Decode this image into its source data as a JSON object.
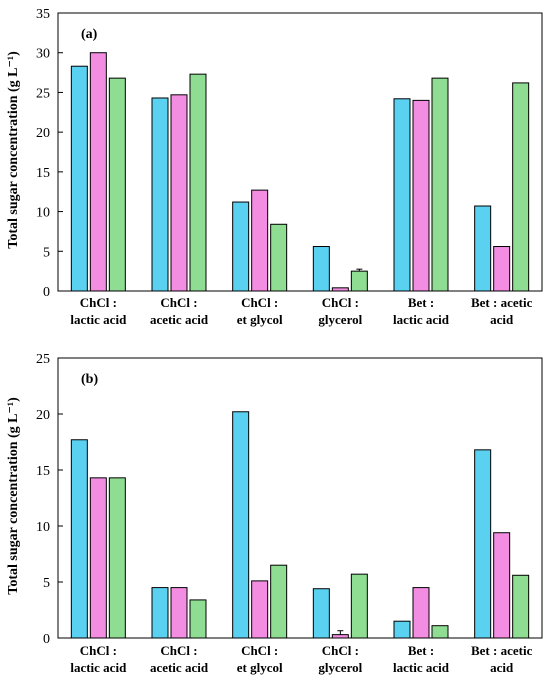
{
  "chart_data": [
    {
      "type": "bar",
      "panel_label": "(a)",
      "ylabel": "Total sugar concentration (g L⁻¹)",
      "ylim": [
        0,
        35
      ],
      "yticks": [
        0,
        5,
        10,
        15,
        20,
        25,
        30,
        35
      ],
      "categories": [
        [
          "ChCl :",
          "lactic acid"
        ],
        [
          "ChCl :",
          "acetic acid"
        ],
        [
          "ChCl :",
          "et glycol"
        ],
        [
          "ChCl :",
          "glycerol"
        ],
        [
          "Bet :",
          "lactic acid"
        ],
        [
          "Bet : acetic",
          "acid"
        ]
      ],
      "series": [
        {
          "color": "#5BD1F2",
          "values": [
            28.3,
            24.3,
            11.2,
            5.6,
            24.2,
            10.7
          ],
          "errors": [
            0,
            0,
            0,
            0,
            0,
            0
          ]
        },
        {
          "color": "#F28DE2",
          "values": [
            30.0,
            24.7,
            12.7,
            0.4,
            24.0,
            5.6
          ],
          "errors": [
            0,
            0,
            0,
            0,
            0,
            0
          ]
        },
        {
          "color": "#8FDC93",
          "values": [
            26.8,
            27.3,
            8.4,
            2.5,
            26.8,
            26.2
          ],
          "errors": [
            0,
            0,
            0,
            0.25,
            0,
            0
          ]
        }
      ]
    },
    {
      "type": "bar",
      "panel_label": "(b)",
      "ylabel": "Total sugar concentration (g L⁻¹)",
      "ylim": [
        0,
        25
      ],
      "yticks": [
        0,
        5,
        10,
        15,
        20,
        25
      ],
      "categories": [
        [
          "ChCl :",
          "lactic acid"
        ],
        [
          "ChCl :",
          "acetic acid"
        ],
        [
          "ChCl :",
          "et glycol"
        ],
        [
          "ChCl :",
          "glycerol"
        ],
        [
          "Bet :",
          "lactic acid"
        ],
        [
          "Bet : acetic",
          "acid"
        ]
      ],
      "series": [
        {
          "color": "#5BD1F2",
          "values": [
            17.7,
            4.5,
            20.2,
            4.4,
            1.5,
            16.8
          ],
          "errors": [
            0,
            0,
            0,
            0,
            0,
            0
          ]
        },
        {
          "color": "#F28DE2",
          "values": [
            14.3,
            4.5,
            5.1,
            0.3,
            4.5,
            9.4
          ],
          "errors": [
            0,
            0,
            0,
            0.35,
            0,
            0
          ]
        },
        {
          "color": "#8FDC93",
          "values": [
            14.3,
            3.4,
            6.5,
            5.7,
            1.1,
            5.6
          ],
          "errors": [
            0,
            0,
            0,
            0,
            0,
            0
          ]
        }
      ]
    }
  ]
}
